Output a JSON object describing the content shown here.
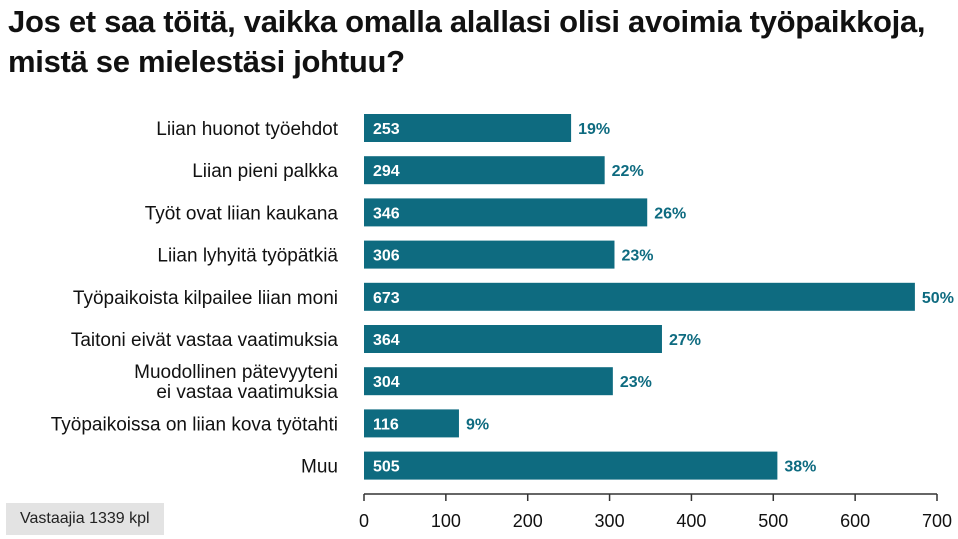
{
  "title": "Jos et saa töitä, vaikka omalla alallasi olisi avoimia työpaikkoja, mistä se mielestäsi johtuu?",
  "note": "Vastaajia 1339 kpl",
  "colors": {
    "bar": "#0e6b80",
    "bar_text": "#ffffff",
    "pct_text": "#0e6b80",
    "axis": "#333333",
    "label": "#111111"
  },
  "chart_data": {
    "type": "bar",
    "orientation": "horizontal",
    "categories": [
      [
        "Liian huonot työehdot"
      ],
      [
        "Liian pieni palkka"
      ],
      [
        "Työt ovat liian kaukana"
      ],
      [
        "Liian lyhyitä työpätkiä"
      ],
      [
        "Työpaikoista kilpailee liian moni"
      ],
      [
        "Taitoni eivät vastaa vaatimuksia"
      ],
      [
        "Muodollinen pätevyyteni",
        "ei vastaa vaatimuksia"
      ],
      [
        "Työpaikoissa on liian kova työtahti"
      ],
      [
        "Muu"
      ]
    ],
    "values": [
      253,
      294,
      346,
      306,
      673,
      364,
      304,
      116,
      505
    ],
    "value_labels": [
      "253",
      "294",
      "346",
      "306",
      "673",
      "364",
      "304",
      "116",
      "505"
    ],
    "percent_labels": [
      "19%",
      "22%",
      "26%",
      "23%",
      "50%",
      "27%",
      "23%",
      "9%",
      "38%"
    ],
    "xlim": [
      0,
      700
    ],
    "ticks": [
      "0",
      "100",
      "200",
      "300",
      "400",
      "500",
      "600",
      "700"
    ],
    "grid": false,
    "xlabel": "",
    "ylabel": ""
  }
}
